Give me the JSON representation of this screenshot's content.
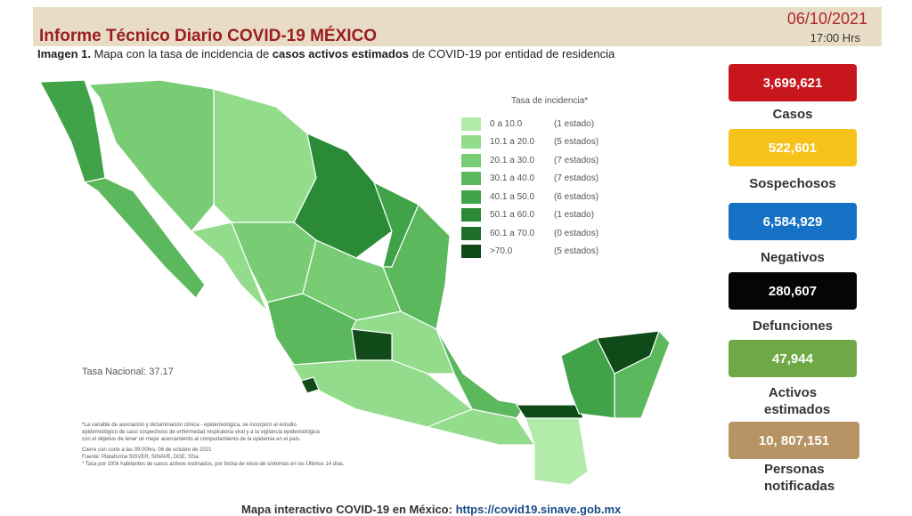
{
  "header": {
    "title": "Informe Técnico Diario COVID-19 MÉXICO",
    "date": "06/10/2021",
    "time": "17:00 Hrs"
  },
  "caption": {
    "lead": "Imagen 1.",
    "part1": "Mapa con la tasa de incidencia de",
    "bold": "casos activos estimados",
    "part2": "de COVID-19 por entidad de residencia"
  },
  "legend": {
    "title": "Tasa de incidencia*",
    "items": [
      {
        "range": "0 a 10.0",
        "count": "(1 estado)",
        "color": "#b3ebaa"
      },
      {
        "range": "10.1 a 20.0",
        "count": "(5 estados)",
        "color": "#93dc8c"
      },
      {
        "range": "20.1 a 30.0",
        "count": "(7 estados)",
        "color": "#77cc74"
      },
      {
        "range": "30.1 a 40.0",
        "count": "(7 estados)",
        "color": "#5cb85d"
      },
      {
        "range": "40.1 a 50.0",
        "count": "(6 estados)",
        "color": "#40a347"
      },
      {
        "range": "50.1 a 60.0",
        "count": "(1 estado)",
        "color": "#2b8a36"
      },
      {
        "range": "60.1 a 70.0",
        "count": "(0 estados)",
        "color": "#1f6f2b"
      },
      {
        "range": ">70.0",
        "count": "(5 estados)",
        "color": "#0f4a18"
      }
    ]
  },
  "national_rate": "Tasa Nacional: 37.17",
  "notes": [
    "*La variable de asociación y dictaminación clínica - epidemiológica, se incorporó al estudio",
    "epidemiológico de caso sospechoso de enfermedad respiratoria viral y a la vigilancia epidemiológica",
    "con el objetivo de tener un mejor acercamiento al comportamiento de la epidemia en el país.",
    "Cierre con corte a las 09:00hrs, 06 de octubre de 2021",
    "Fuente: Plataforma SISVER, SINAVE, DGE, SSa.",
    "* Tasa por 100k habitantes de casos activos estimados, por fecha de inicio de síntomas en los Últimos 14 días."
  ],
  "stats": [
    {
      "value": "3,699,621",
      "label": "Casos",
      "color": "#c8161d"
    },
    {
      "value": "522,601",
      "label": "Sospechosos",
      "color": "#f7c21a"
    },
    {
      "value": "6,584,929",
      "label": "Negativos",
      "color": "#1572c4"
    },
    {
      "value": "280,607",
      "label": "Defunciones",
      "color": "#050505"
    },
    {
      "value": "47,944",
      "label": "Activos estimados",
      "color": "#6ea945"
    },
    {
      "value": "10, 807,151",
      "label": "Personas notificadas",
      "color": "#b89465"
    }
  ],
  "footer": {
    "text": "Mapa interactivo COVID-19 en México:",
    "link": "https://covid19.sinave.gob.mx"
  }
}
